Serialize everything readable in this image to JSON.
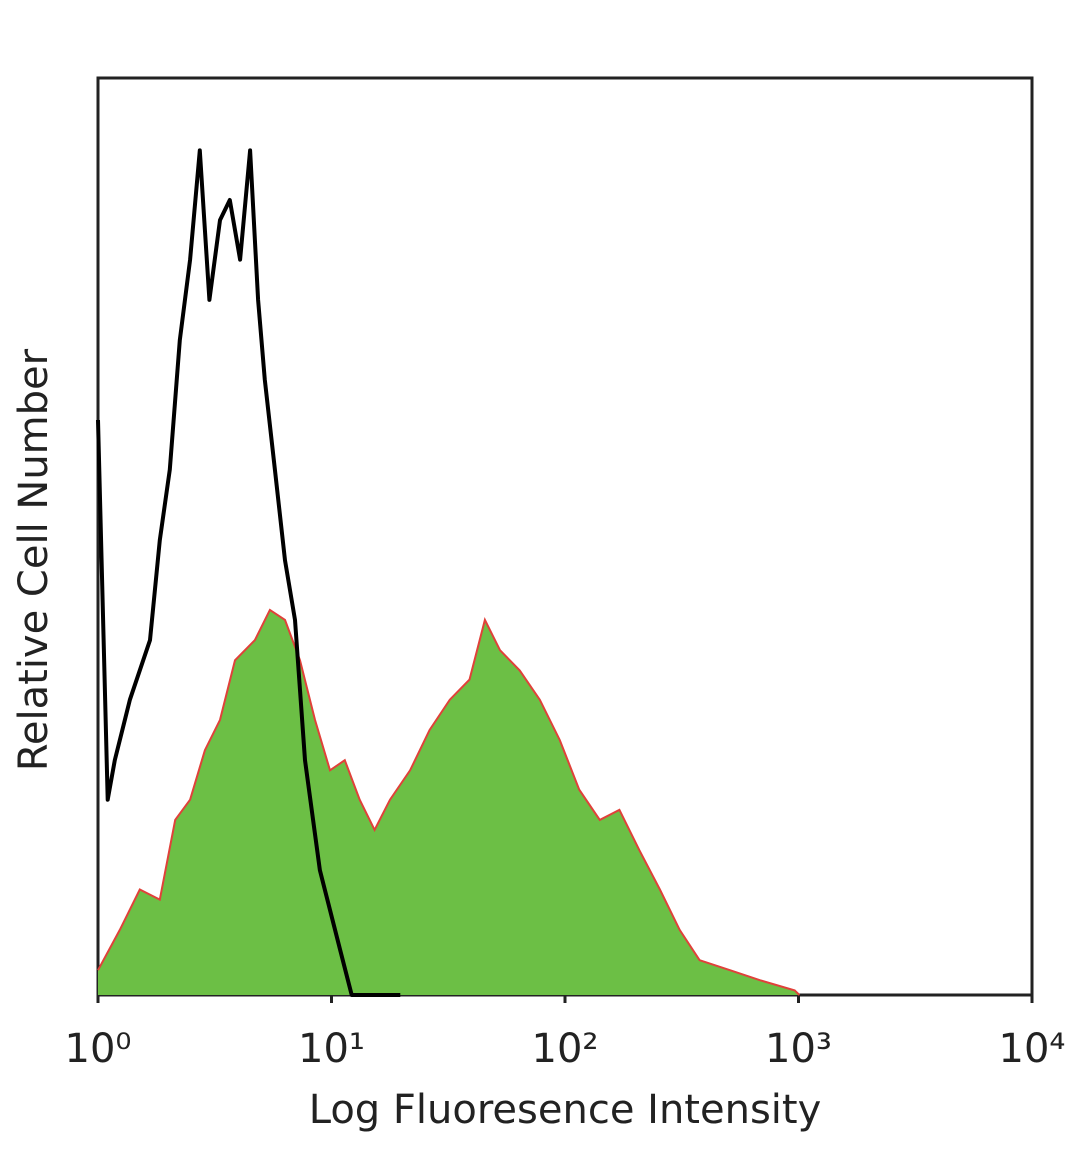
{
  "chart_data": {
    "type": "area",
    "xlabel": "Log Fluoresence Intensity",
    "ylabel": "Relative Cell Number",
    "xscale": "log",
    "xlim": [
      1,
      10000
    ],
    "xticks": [
      {
        "value": 1,
        "label": "10⁰"
      },
      {
        "value": 10,
        "label": "10¹"
      },
      {
        "value": 100,
        "label": "10²"
      },
      {
        "value": 1000,
        "label": "10³"
      },
      {
        "value": 10000,
        "label": "10⁴"
      }
    ],
    "ylim": [
      0,
      100
    ],
    "grid": false,
    "series": [
      {
        "color": "#6cbf45",
        "line_color": "#e0413a",
        "filled": true,
        "x": [
          1,
          1.24,
          1.51,
          1.84,
          2.14,
          2.48,
          2.87,
          3.33,
          3.86,
          4.7,
          5.45,
          6.32,
          7.33,
          8.5,
          9.85,
          11.4,
          13.2,
          15.3,
          17.8,
          21.7,
          26.3,
          32.1,
          39.0,
          45.4,
          52.7,
          64.0,
          78.0,
          95.0,
          115,
          141,
          171,
          208,
          255,
          310,
          377,
          509,
          686,
          963,
          1009
        ],
        "values": [
          2.7,
          7.1,
          11.5,
          10.4,
          19.1,
          21.3,
          26.7,
          30.0,
          36.5,
          38.7,
          42.0,
          40.9,
          36.5,
          30.0,
          24.5,
          25.6,
          21.3,
          18.0,
          21.3,
          24.5,
          28.9,
          32.2,
          34.4,
          40.9,
          37.6,
          35.4,
          32.2,
          27.8,
          22.4,
          19.1,
          20.2,
          15.8,
          11.5,
          7.1,
          3.8,
          2.7,
          1.6,
          0.5,
          0
        ]
      },
      {
        "color": "#000000",
        "filled": false,
        "x": [
          1,
          1.1,
          1.18,
          1.37,
          1.67,
          1.84,
          2.03,
          2.24,
          2.48,
          2.73,
          3.0,
          3.33,
          3.67,
          4.06,
          4.48,
          4.85,
          5.18,
          5.72,
          6.32,
          6.98,
          7.7,
          8.92,
          10.9,
          12.2,
          19.7
        ],
        "values": [
          62.7,
          21.3,
          25.6,
          32.2,
          38.7,
          49.6,
          57.3,
          71.4,
          80.2,
          92.1,
          75.8,
          84.5,
          86.7,
          80.2,
          92.1,
          75.8,
          67.1,
          57.3,
          47.4,
          40.9,
          25.6,
          13.6,
          4.9,
          0,
          0
        ]
      }
    ]
  }
}
